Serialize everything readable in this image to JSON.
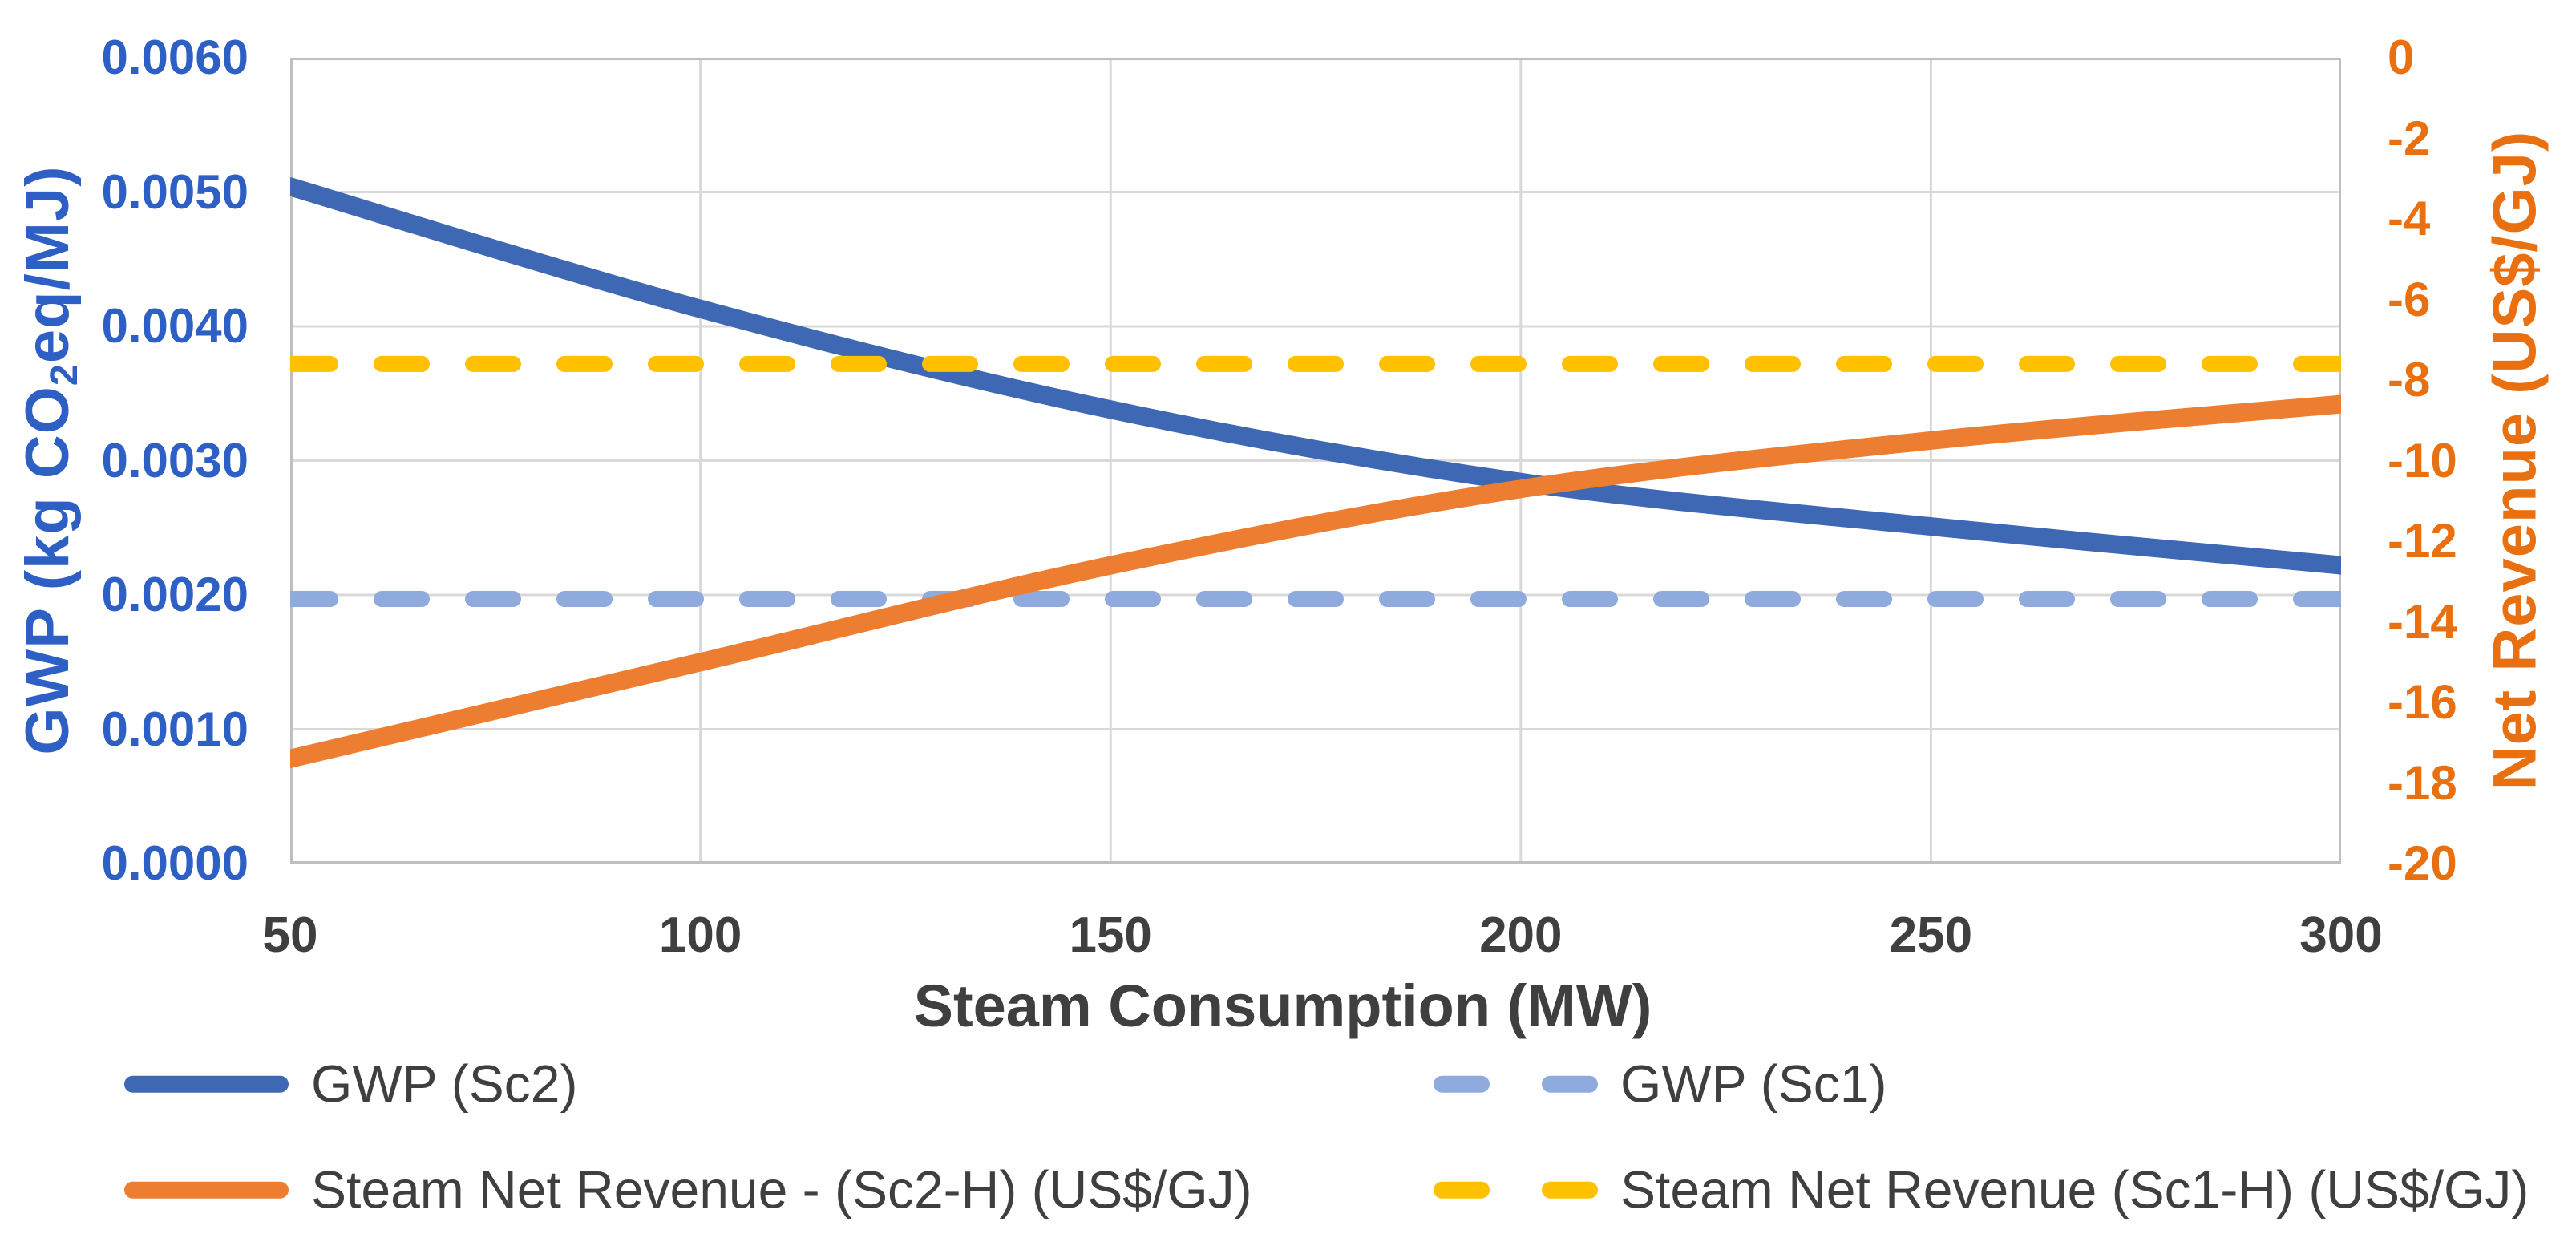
{
  "chart_data": {
    "type": "line",
    "grid": true,
    "legend_position": "bottom",
    "background": "#ffffff",
    "gridline_color": "#D9D9D9",
    "plot_border_color": "#BFBFBF",
    "x_axis": {
      "title": "Steam Consumption (MW)",
      "color": "#3F3F3F",
      "range": [
        50,
        300
      ],
      "ticks": [
        {
          "label": "50",
          "value": 50
        },
        {
          "label": "100",
          "value": 100
        },
        {
          "label": "150",
          "value": 150
        },
        {
          "label": "200",
          "value": 200
        },
        {
          "label": "250",
          "value": 250
        },
        {
          "label": "300",
          "value": 300
        }
      ]
    },
    "left_axis": {
      "label_parts": {
        "prefix": "GWP (kg CO",
        "sub": "2",
        "suffix": "eq/MJ)"
      },
      "color": "#2E5FC5",
      "range": [
        0.0,
        0.006
      ],
      "ticks": [
        {
          "label": "0.0060",
          "value": 0.006
        },
        {
          "label": "0.0050",
          "value": 0.005
        },
        {
          "label": "0.0040",
          "value": 0.004
        },
        {
          "label": "0.0030",
          "value": 0.003
        },
        {
          "label": "0.0020",
          "value": 0.002
        },
        {
          "label": "0.0010",
          "value": 0.001
        },
        {
          "label": "0.0000",
          "value": 0.0
        }
      ]
    },
    "right_axis": {
      "label": "Net Revenue (US$/GJ)",
      "color": "#E87011",
      "range": [
        -20,
        0
      ],
      "ticks": [
        {
          "label": "0",
          "value": 0
        },
        {
          "label": "-2",
          "value": -2
        },
        {
          "label": "-4",
          "value": -4
        },
        {
          "label": "-6",
          "value": -6
        },
        {
          "label": "-8",
          "value": -8
        },
        {
          "label": "-10",
          "value": -10
        },
        {
          "label": "-12",
          "value": -12
        },
        {
          "label": "-14",
          "value": -14
        },
        {
          "label": "-16",
          "value": -16
        },
        {
          "label": "-18",
          "value": -18
        },
        {
          "label": "-20",
          "value": -20
        }
      ]
    },
    "x": [
      50,
      100,
      150,
      200,
      250,
      300
    ],
    "series": [
      {
        "name": "GWP (Sc2)",
        "axis": "left",
        "style": "solid",
        "color": "#3E68B4",
        "values": [
          0.00504,
          0.00413,
          0.00338,
          0.00284,
          0.00251,
          0.00222
        ]
      },
      {
        "name": "GWP (Sc1)",
        "axis": "left",
        "style": "dashed",
        "color": "#8FAADC",
        "values": [
          0.00197,
          0.00197,
          0.00197,
          0.00197,
          0.00197,
          0.00197
        ]
      },
      {
        "name": "Steam Net Revenue - (Sc2-H) (US$/GJ)",
        "axis": "right",
        "style": "solid",
        "color": "#ED7D31",
        "values": [
          -17.4,
          -15.0,
          -12.6,
          -10.7,
          -9.5,
          -8.6
        ]
      },
      {
        "name": "Steam Net Revenue (Sc1-H) (US$/GJ)",
        "axis": "right",
        "style": "dashed",
        "color": "#FFC000",
        "values": [
          -7.6,
          -7.6,
          -7.6,
          -7.6,
          -7.6,
          -7.6
        ]
      }
    ]
  }
}
